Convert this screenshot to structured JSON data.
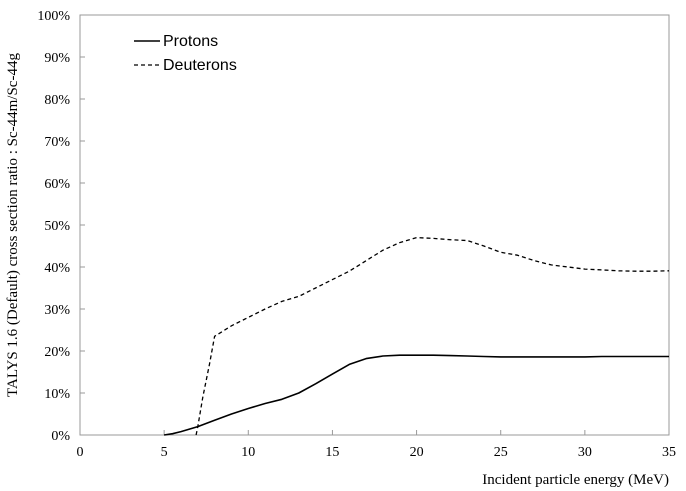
{
  "chart_data": {
    "type": "line",
    "title": "",
    "xlabel": "Incident particle energy (MeV)",
    "ylabel": "TALYS 1.6 (Default) cross section ratio : Sc-44m/Sc-44g",
    "xlim": [
      0,
      35
    ],
    "ylim": [
      0,
      100
    ],
    "x_ticks": [
      "0",
      "5",
      "10",
      "15",
      "20",
      "25",
      "30",
      "35"
    ],
    "y_ticks": [
      "0%",
      "10%",
      "20%",
      "30%",
      "40%",
      "50%",
      "60%",
      "70%",
      "80%",
      "90%",
      "100%"
    ],
    "grid": false,
    "legend_position": "top-left",
    "series": [
      {
        "name": "Protons",
        "style": "solid",
        "color": "#000000",
        "x": [
          5,
          5.5,
          6,
          6.5,
          7,
          8,
          9,
          10,
          11,
          12,
          13,
          14,
          15,
          16,
          17,
          18,
          19,
          20,
          21,
          22,
          23,
          24,
          25,
          26,
          27,
          28,
          29,
          30,
          31,
          32,
          33,
          34,
          35
        ],
        "y": [
          0,
          0.3,
          0.8,
          1.4,
          2.0,
          3.5,
          5.0,
          6.3,
          7.5,
          8.5,
          10.0,
          12.2,
          14.5,
          16.8,
          18.2,
          18.8,
          19.0,
          19.0,
          19.0,
          18.9,
          18.8,
          18.7,
          18.6,
          18.6,
          18.6,
          18.6,
          18.6,
          18.6,
          18.7,
          18.7,
          18.7,
          18.7,
          18.7
        ]
      },
      {
        "name": "Deuterons",
        "style": "dashed",
        "color": "#000000",
        "x": [
          6.9,
          7.0,
          7.3,
          7.7,
          8.0,
          9.0,
          10.0,
          11.0,
          12.0,
          13.0,
          14.0,
          15.0,
          16.0,
          17.0,
          18.0,
          19.0,
          20.0,
          21.0,
          22.0,
          23.0,
          24.0,
          25.0,
          26.0,
          27.0,
          28.0,
          29.0,
          30.0,
          31.0,
          32.0,
          33.0,
          34.0,
          35.0
        ],
        "y": [
          0,
          2.0,
          9.0,
          17.0,
          23.5,
          26.0,
          28.0,
          30.0,
          31.8,
          33.0,
          35.0,
          37.0,
          39.0,
          41.5,
          44.0,
          45.8,
          47.0,
          46.8,
          46.5,
          46.3,
          45.0,
          43.5,
          42.8,
          41.5,
          40.5,
          40.0,
          39.5,
          39.3,
          39.1,
          39.0,
          39.0,
          39.1
        ]
      }
    ]
  }
}
